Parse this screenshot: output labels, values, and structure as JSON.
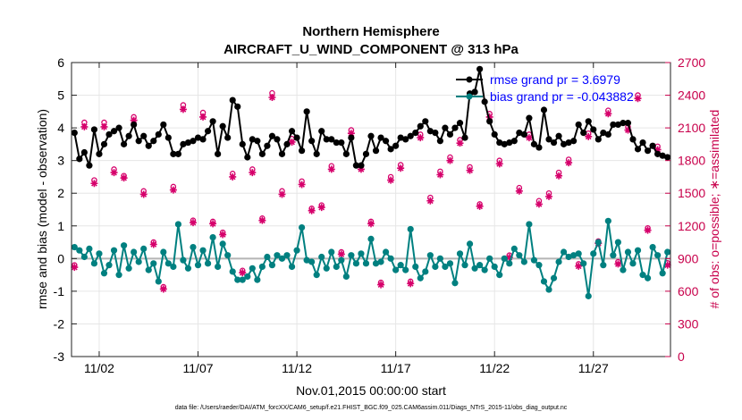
{
  "chart_data": {
    "type": "line",
    "title": "Northern Hemisphere",
    "subtitle": "AIRCRAFT_U_WIND_COMPONENT @ 313 hPa",
    "xlabel": "Nov.01,2015 00:00:00 start",
    "ylabel": "rmse and bias (model - observation)",
    "ylabel_right": "# of obs: o=possible; ∗=assimilated",
    "footnote": "data file: /Users/raeder/DAI/ATM_forcXX/CAM6_setup/f.e21.FHIST_BGC.f09_025.CAM6assim.011/Diags_NTrS_2015-11/obs_diag_output.nc",
    "xlim": [
      0.6,
      30.9
    ],
    "ylim": [
      -3,
      6
    ],
    "ylim_right": [
      0,
      2700
    ],
    "x_ticks": [
      2,
      7,
      12,
      17,
      22,
      27
    ],
    "x_tick_labels": [
      "11/02",
      "11/07",
      "11/12",
      "11/17",
      "11/22",
      "11/27"
    ],
    "y_ticks": [
      -3,
      -2,
      -1,
      0,
      1,
      2,
      3,
      4,
      5,
      6
    ],
    "y_tick_labels": [
      "-3",
      "-2",
      "-1",
      "0",
      "1",
      "2",
      "3",
      "4",
      "5",
      "6"
    ],
    "y_right_ticks": [
      0,
      300,
      600,
      900,
      1200,
      1500,
      1800,
      2100,
      2400,
      2700
    ],
    "y_right_tick_labels": [
      "0",
      "300",
      "600",
      "900",
      "1200",
      "1500",
      "1800",
      "2100",
      "2400",
      "2700"
    ],
    "grid": true,
    "legend_position": "top-right",
    "series": [
      {
        "name": "rmse grand pr = 3.6979",
        "axis": "left",
        "color": "#000000",
        "marker": "hexagon",
        "x": [
          0.75,
          1.0,
          1.25,
          1.5,
          1.75,
          2.0,
          2.25,
          2.5,
          2.75,
          3.0,
          3.25,
          3.5,
          3.75,
          4.0,
          4.25,
          4.5,
          4.75,
          5.0,
          5.25,
          5.5,
          5.75,
          6.0,
          6.25,
          6.5,
          6.75,
          7.0,
          7.25,
          7.5,
          7.75,
          8.0,
          8.25,
          8.5,
          8.75,
          9.0,
          9.25,
          9.5,
          9.75,
          10.0,
          10.25,
          10.5,
          10.75,
          11.0,
          11.25,
          11.5,
          11.75,
          12.0,
          12.25,
          12.5,
          12.75,
          13.0,
          13.25,
          13.5,
          13.75,
          14.0,
          14.25,
          14.5,
          14.75,
          15.0,
          15.25,
          15.5,
          15.75,
          16.0,
          16.25,
          16.5,
          16.75,
          17.0,
          17.25,
          17.5,
          17.75,
          18.0,
          18.25,
          18.5,
          18.75,
          19.0,
          19.25,
          19.5,
          19.75,
          20.0,
          20.25,
          20.5,
          20.75,
          21.0,
          21.25,
          21.5,
          21.75,
          22.0,
          22.25,
          22.5,
          22.75,
          23.0,
          23.25,
          23.5,
          23.75,
          24.0,
          24.25,
          24.5,
          24.75,
          25.0,
          25.25,
          25.5,
          25.75,
          26.0,
          26.25,
          26.5,
          26.75,
          27.0,
          27.25,
          27.5,
          27.75,
          28.0,
          28.25,
          28.5,
          28.75,
          29.0,
          29.25,
          29.5,
          29.75,
          30.0,
          30.25,
          30.5,
          30.75
        ],
        "values": [
          3.85,
          3.05,
          3.25,
          2.85,
          3.95,
          3.2,
          3.5,
          3.8,
          3.9,
          4.0,
          3.5,
          3.75,
          4.1,
          3.6,
          3.75,
          3.45,
          3.6,
          3.8,
          4.1,
          3.7,
          3.2,
          3.2,
          3.5,
          3.55,
          3.6,
          3.7,
          3.65,
          3.9,
          4.2,
          3.2,
          4.05,
          3.7,
          4.85,
          4.65,
          3.5,
          3.1,
          3.65,
          3.6,
          3.2,
          3.45,
          3.75,
          3.65,
          3.2,
          3.5,
          3.9,
          3.7,
          3.3,
          4.5,
          3.6,
          3.2,
          3.9,
          3.65,
          3.65,
          3.55,
          3.55,
          3.2,
          3.7,
          2.85,
          2.85,
          3.2,
          3.75,
          3.3,
          3.7,
          3.6,
          3.35,
          3.45,
          3.7,
          3.65,
          3.75,
          3.85,
          4.05,
          4.2,
          3.9,
          3.85,
          3.6,
          4.0,
          3.8,
          4.0,
          4.15,
          3.7,
          5.05,
          5.1,
          5.8,
          4.8,
          4.2,
          3.8,
          3.55,
          3.5,
          3.55,
          3.6,
          3.85,
          3.8,
          4.3,
          3.5,
          3.4,
          4.55,
          3.65,
          3.55,
          3.75,
          3.5,
          3.55,
          3.6,
          4.1,
          3.85,
          4.2,
          3.95,
          3.65,
          3.85,
          3.8,
          4.1,
          4.1,
          4.15,
          4.15,
          3.65,
          3.35,
          3.55,
          3.3,
          3.45,
          3.2,
          3.15,
          3.1
        ]
      },
      {
        "name": "bias grand pr = -0.043882",
        "axis": "left",
        "color": "#008080",
        "marker": "hexagon",
        "x": [
          0.75,
          1.0,
          1.25,
          1.5,
          1.75,
          2.0,
          2.25,
          2.5,
          2.75,
          3.0,
          3.25,
          3.5,
          3.75,
          4.0,
          4.25,
          4.5,
          4.75,
          5.0,
          5.25,
          5.5,
          5.75,
          6.0,
          6.25,
          6.5,
          6.75,
          7.0,
          7.25,
          7.5,
          7.75,
          8.0,
          8.25,
          8.5,
          8.75,
          9.0,
          9.25,
          9.5,
          9.75,
          10.0,
          10.25,
          10.5,
          10.75,
          11.0,
          11.25,
          11.5,
          11.75,
          12.0,
          12.25,
          12.5,
          12.75,
          13.0,
          13.25,
          13.5,
          13.75,
          14.0,
          14.25,
          14.5,
          14.75,
          15.0,
          15.25,
          15.5,
          15.75,
          16.0,
          16.25,
          16.5,
          16.75,
          17.0,
          17.25,
          17.5,
          17.75,
          18.0,
          18.25,
          18.5,
          18.75,
          19.0,
          19.25,
          19.5,
          19.75,
          20.0,
          20.25,
          20.5,
          20.75,
          21.0,
          21.25,
          21.5,
          21.75,
          22.0,
          22.25,
          22.5,
          22.75,
          23.0,
          23.25,
          23.5,
          23.75,
          24.0,
          24.25,
          24.5,
          24.75,
          25.0,
          25.25,
          25.5,
          25.75,
          26.0,
          26.25,
          26.5,
          26.75,
          27.0,
          27.25,
          27.5,
          27.75,
          28.0,
          28.25,
          28.5,
          28.75,
          29.0,
          29.25,
          29.5,
          29.75,
          30.0,
          30.25,
          30.5,
          30.75
        ],
        "values": [
          0.35,
          0.25,
          0.05,
          0.3,
          -0.15,
          0.15,
          -0.45,
          -0.2,
          0.25,
          -0.5,
          0.4,
          -0.3,
          0.2,
          -0.1,
          0.3,
          -0.35,
          -0.15,
          -0.7,
          0.2,
          -0.15,
          -0.25,
          1.05,
          -0.05,
          -0.3,
          0.35,
          -0.2,
          0.25,
          -0.15,
          0.65,
          -0.25,
          0.45,
          0.1,
          -0.4,
          -0.65,
          -0.65,
          -0.55,
          -0.3,
          -0.65,
          -0.25,
          0.05,
          -0.2,
          0.1,
          0.0,
          0.1,
          -0.25,
          0.25,
          0.95,
          -0.05,
          -0.1,
          -0.5,
          0.05,
          -0.3,
          0.2,
          -0.25,
          -0.05,
          -0.55,
          0.1,
          -0.15,
          0.15,
          -0.15,
          0.6,
          -0.15,
          -0.1,
          0.2,
          0.0,
          -0.35,
          -0.2,
          -0.35,
          0.9,
          -0.25,
          -0.6,
          -0.4,
          0.1,
          -0.25,
          0.0,
          -0.25,
          -0.15,
          -0.75,
          0.15,
          -0.2,
          0.45,
          -0.3,
          -0.2,
          -0.35,
          0.0,
          -0.25,
          -0.5,
          0.0,
          -0.15,
          0.3,
          0.1,
          -0.1,
          1.05,
          -0.05,
          -0.2,
          -0.7,
          -0.95,
          -0.6,
          -0.1,
          0.2,
          0.05,
          0.1,
          0.15,
          -0.15,
          -1.15,
          0.15,
          0.5,
          -0.2,
          1.15,
          0.1,
          0.5,
          -0.35,
          0.2,
          -0.15,
          0.25,
          -0.5,
          -0.6,
          0.35,
          0.1,
          -0.45,
          0.2
        ]
      },
      {
        "name": "obs possible",
        "axis": "right",
        "color": "#d6006b",
        "marker": "circle",
        "x": [
          0.75,
          1.25,
          1.75,
          2.25,
          2.75,
          3.25,
          3.75,
          4.25,
          4.75,
          5.25,
          5.75,
          6.25,
          6.75,
          7.25,
          7.75,
          8.25,
          8.75,
          9.25,
          9.75,
          10.25,
          10.75,
          11.25,
          11.75,
          12.25,
          12.75,
          13.25,
          13.75,
          14.25,
          14.75,
          15.25,
          15.75,
          16.25,
          16.75,
          17.25,
          17.75,
          18.25,
          18.75,
          19.25,
          19.75,
          20.25,
          20.75,
          21.25,
          21.75,
          22.25,
          22.75,
          23.25,
          23.75,
          24.25,
          24.75,
          25.25,
          25.75,
          26.25,
          26.75,
          27.25,
          27.75,
          28.25,
          28.75,
          29.25,
          29.75,
          30.25,
          30.75
        ],
        "values": [
          840,
          2150,
          1620,
          2150,
          1720,
          1660,
          2200,
          1520,
          1050,
          640,
          1560,
          2310,
          1250,
          2240,
          1240,
          1140,
          1680,
          790,
          1720,
          1270,
          2420,
          1520,
          2000,
          1610,
          1360,
          1390,
          1750,
          960,
          2080,
          1750,
          1240,
          680,
          1650,
          1760,
          690,
          2040,
          1460,
          1700,
          1830,
          1990,
          1740,
          1400,
          2230,
          1800,
          930,
          1550,
          2040,
          1430,
          1500,
          1690,
          1810,
          850,
          2050,
          1060,
          2260,
          870,
          2110,
          2400,
          1180,
          1930,
          860
        ]
      },
      {
        "name": "obs assimilated",
        "axis": "right",
        "color": "#d6006b",
        "marker": "asterisk",
        "x": [
          0.75,
          1.25,
          1.75,
          2.25,
          2.75,
          3.25,
          3.75,
          4.25,
          4.75,
          5.25,
          5.75,
          6.25,
          6.75,
          7.25,
          7.75,
          8.25,
          8.75,
          9.25,
          9.75,
          10.25,
          10.75,
          11.25,
          11.75,
          12.25,
          12.75,
          13.25,
          13.75,
          14.25,
          14.75,
          15.25,
          15.75,
          16.25,
          16.75,
          17.25,
          17.75,
          18.25,
          18.75,
          19.25,
          19.75,
          20.25,
          20.75,
          21.25,
          21.75,
          22.25,
          22.75,
          23.25,
          23.75,
          24.25,
          24.75,
          25.25,
          25.75,
          26.25,
          26.75,
          27.25,
          27.75,
          28.25,
          28.75,
          29.25,
          29.75,
          30.25,
          30.75
        ],
        "values": [
          820,
          2110,
          1590,
          2110,
          1690,
          1640,
          2170,
          1490,
          1030,
          620,
          1530,
          2270,
          1230,
          2200,
          1220,
          1120,
          1650,
          770,
          1690,
          1250,
          2380,
          1490,
          1970,
          1580,
          1340,
          1370,
          1720,
          940,
          2050,
          1720,
          1220,
          660,
          1620,
          1730,
          670,
          2010,
          1430,
          1670,
          1800,
          1960,
          1710,
          1380,
          2200,
          1770,
          910,
          1520,
          2010,
          1400,
          1470,
          1660,
          1780,
          830,
          2020,
          1040,
          2230,
          850,
          2080,
          2370,
          1160,
          1900,
          840
        ]
      }
    ]
  }
}
